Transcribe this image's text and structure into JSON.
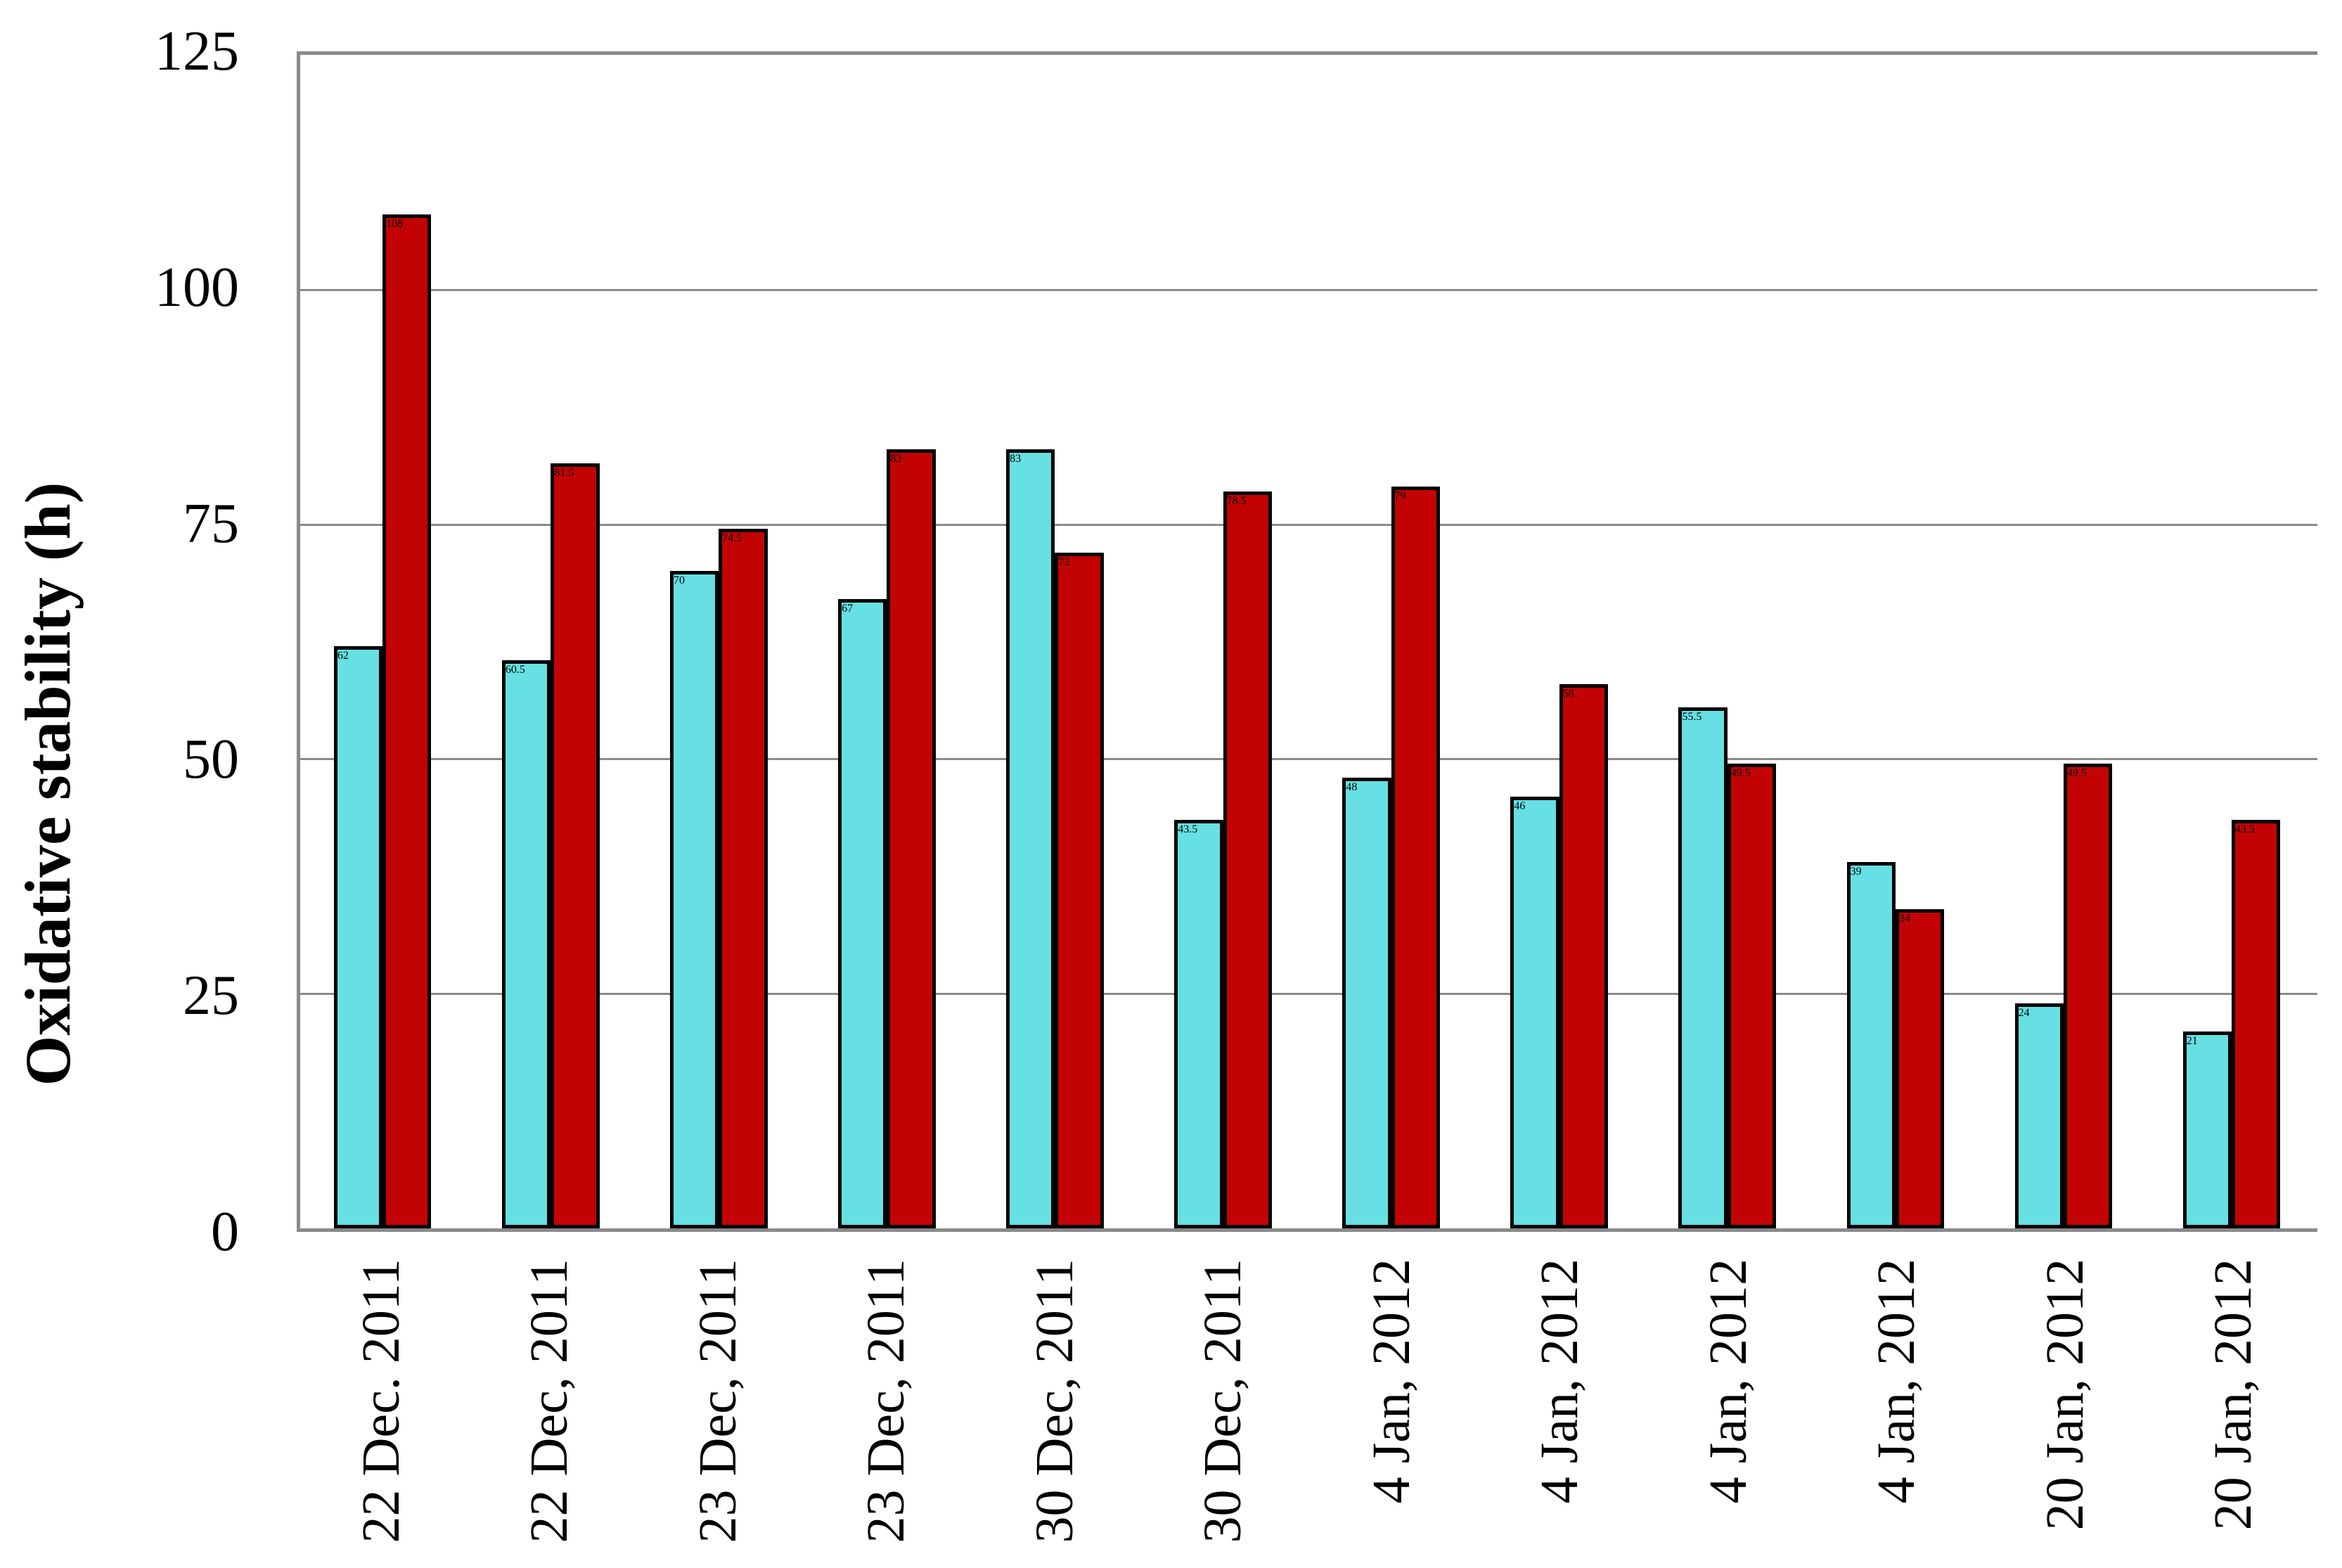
{
  "chart_data": {
    "type": "bar",
    "title": "",
    "xlabel": "",
    "ylabel": "Oxidative stability (h)",
    "ylim": [
      0,
      125
    ],
    "yticks": [
      0,
      25,
      50,
      75,
      100,
      125
    ],
    "grid": "horizontal gridlines at 25-unit intervals",
    "legend_position": "none",
    "categories": [
      "22 Dec. 2011",
      "22 Dec, 2011",
      "23 Dec, 2011",
      "23 Dec, 2011",
      "30 Dec, 2011",
      "30 Dec, 2011",
      "4 Jan, 2012",
      "4 Jan, 2012",
      "4 Jan, 2012",
      "4 Jan, 2012",
      "20 Jan, 2012",
      "20 Jan, 2012"
    ],
    "series": [
      {
        "name": "series-1",
        "color": "#66E0E3",
        "values": [
          62,
          60.5,
          70,
          67,
          83,
          43.5,
          48,
          46,
          55.5,
          39,
          24,
          21
        ]
      },
      {
        "name": "series-2",
        "color": "#C30303",
        "values": [
          108,
          81.5,
          74.5,
          83,
          72,
          78.5,
          79,
          58,
          49.5,
          34,
          49.5,
          43.5
        ]
      }
    ]
  },
  "colors": {
    "background": "#FFFFFF",
    "axis_frame": "#8A8A8A",
    "bar_border": "#000000",
    "text": "#000000"
  }
}
